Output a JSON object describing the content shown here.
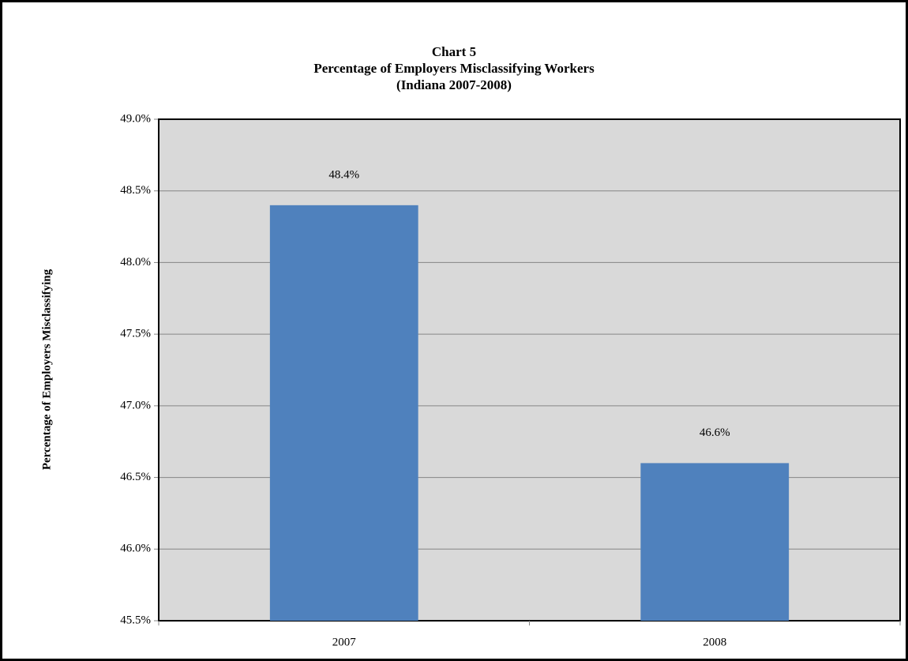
{
  "chart_data": {
    "type": "bar",
    "title": [
      "Chart 5",
      "Percentage of Employers Misclassifying Workers",
      "(Indiana 2007-2008)"
    ],
    "y_label": "Percentage of Employers Misclassifying",
    "categories": [
      "2007",
      "2008"
    ],
    "values": [
      48.4,
      46.6
    ],
    "value_labels": [
      "48.4%",
      "46.6%"
    ],
    "color": "#4f81bd",
    "ylim": [
      45.5,
      49.0
    ],
    "yticks": [
      {
        "value": 45.5,
        "label": "45.5%"
      },
      {
        "value": 46.0,
        "label": "46.0%"
      },
      {
        "value": 46.5,
        "label": "46.5%"
      },
      {
        "value": 47.0,
        "label": "47.0%"
      },
      {
        "value": 47.5,
        "label": "47.5%"
      },
      {
        "value": 48.0,
        "label": "48.0%"
      },
      {
        "value": 48.5,
        "label": "48.5%"
      },
      {
        "value": 49.0,
        "label": "49.0%"
      }
    ],
    "grid": true
  }
}
